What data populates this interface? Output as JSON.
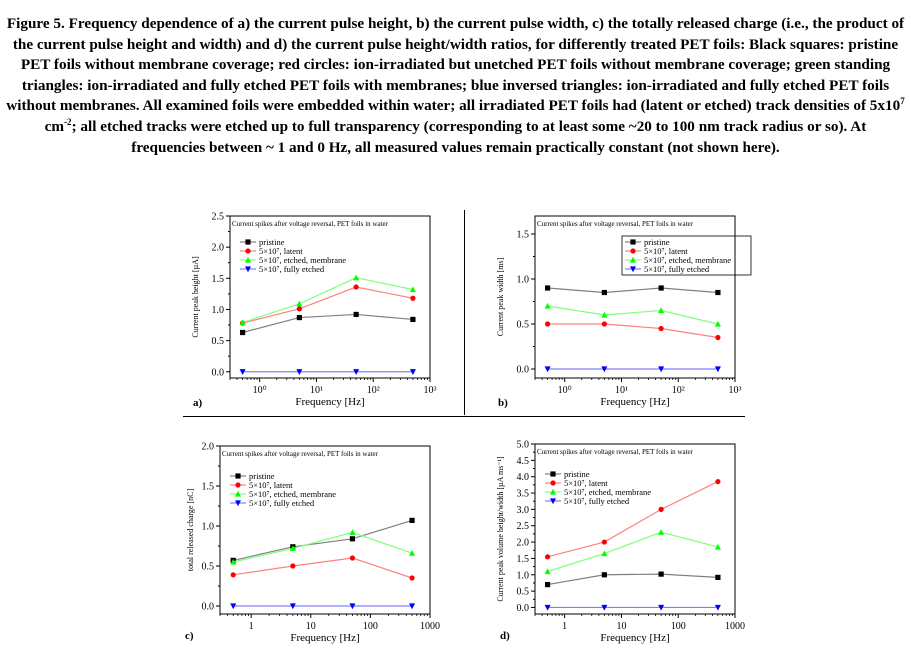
{
  "caption": {
    "text": "Figure 5. Frequency dependence of a) the current pulse height, b) the current pulse width, c) the totally released charge (i.e., the product of the current pulse height and width) and d) the current pulse height/width ratios, for differently treated PET foils: Black squares: pristine PET foils without membrane coverage; red circles: ion-irradiated but unetched PET foils without membrane coverage; green standing triangles: ion-irradiated and fully etched PET foils with membranes; blue inversed triangles: ion-irradiated and fully etched PET foils without membranes. All examined foils were embedded within water; all irradiated PET foils had (latent or etched) track densities of 5x10",
    "exp1": "7",
    "text2": " cm",
    "exp2": "-2",
    "text3": "; all etched tracks were etched up to full transparency (corresponding to at least some ~20 to 100 nm track radius or so). At frequencies between ~ 1 and 0 Hz, all measured values remain practically constant (not shown here)."
  },
  "chart_data": [
    {
      "id": "a",
      "type": "line",
      "panel_label": "a)",
      "title": "Current spikes after voltage reversal, PET foils in water",
      "xlabel": "Frequency [Hz]",
      "ylabel": "Current peak height [µA]",
      "x_scale": "log",
      "xlim": [
        0.3,
        1000
      ],
      "ylim": [
        -0.1,
        2.5
      ],
      "x_ticks": [
        {
          "v": 1,
          "label": "10⁰"
        },
        {
          "v": 10,
          "label": "10¹"
        },
        {
          "v": 100,
          "label": "10²"
        },
        {
          "v": 1000,
          "label": "10³"
        }
      ],
      "y_ticks": [
        {
          "v": 0,
          "label": "0.0"
        },
        {
          "v": 0.5,
          "label": "0.5"
        },
        {
          "v": 1,
          "label": "1.0"
        },
        {
          "v": 1.5,
          "label": "1.5"
        },
        {
          "v": 2,
          "label": "2.0"
        },
        {
          "v": 2.5,
          "label": "2.5"
        }
      ],
      "x": [
        0.5,
        5,
        50,
        500
      ],
      "legend": "upper-left",
      "series": [
        {
          "name": "pristine",
          "marker": "square",
          "color": "#000000",
          "line_color": "#808080",
          "values": [
            0.63,
            0.87,
            0.92,
            0.84
          ]
        },
        {
          "name": "5×10⁷, latent",
          "marker": "circle",
          "color": "#ff0000",
          "line_color": "#ff8080",
          "values": [
            0.78,
            1.01,
            1.36,
            1.18
          ]
        },
        {
          "name": "5×10⁷, etched, membrane",
          "marker": "triangle-up",
          "color": "#00ff00",
          "line_color": "#80ff80",
          "values": [
            0.79,
            1.09,
            1.51,
            1.32
          ]
        },
        {
          "name": "5×10⁷, fully etched",
          "marker": "triangle-down",
          "color": "#0000ff",
          "line_color": "#8080ff",
          "values": [
            0.0,
            0.0,
            0.0,
            0.0
          ]
        }
      ]
    },
    {
      "id": "b",
      "type": "line",
      "panel_label": "b)",
      "title": "Current spikes after voltage reversal, PET foils in water",
      "xlabel": "Frequency [Hz]",
      "ylabel": "Current peak width [ms]",
      "x_scale": "log",
      "xlim": [
        0.3,
        1000
      ],
      "ylim": [
        -0.1,
        1.7
      ],
      "x_ticks": [
        {
          "v": 1,
          "label": "10⁰"
        },
        {
          "v": 10,
          "label": "10¹"
        },
        {
          "v": 100,
          "label": "10²"
        },
        {
          "v": 1000,
          "label": "10³"
        }
      ],
      "y_ticks": [
        {
          "v": 0,
          "label": "0.0"
        },
        {
          "v": 0.5,
          "label": "0.5"
        },
        {
          "v": 1,
          "label": "1.0"
        },
        {
          "v": 1.5,
          "label": "1.5"
        }
      ],
      "x": [
        0.5,
        5,
        50,
        500
      ],
      "legend": "upper-right",
      "series": [
        {
          "name": "pristine",
          "marker": "square",
          "color": "#000000",
          "line_color": "#808080",
          "values": [
            0.9,
            0.85,
            0.9,
            0.85
          ]
        },
        {
          "name": "5×10⁷, latent",
          "marker": "circle",
          "color": "#ff0000",
          "line_color": "#ff8080",
          "values": [
            0.5,
            0.5,
            0.45,
            0.35
          ]
        },
        {
          "name": "5×10⁷, etched, membrane",
          "marker": "triangle-up",
          "color": "#00ff00",
          "line_color": "#80ff80",
          "values": [
            0.7,
            0.6,
            0.65,
            0.5
          ]
        },
        {
          "name": "5×10⁷, fully etched",
          "marker": "triangle-down",
          "color": "#0000ff",
          "line_color": "#8080ff",
          "values": [
            0.0,
            0.0,
            0.0,
            0.0
          ]
        }
      ]
    },
    {
      "id": "c",
      "type": "line",
      "panel_label": "c)",
      "title": "Current spikes after voltage reversal, PET foils in water",
      "xlabel": "Frequency [Hz]",
      "ylabel": "total released charge [nC]",
      "x_scale": "log",
      "xlim": [
        0.3,
        1000
      ],
      "ylim": [
        -0.1,
        2.0
      ],
      "x_ticks": [
        {
          "v": 1,
          "label": "1"
        },
        {
          "v": 10,
          "label": "10"
        },
        {
          "v": 100,
          "label": "100"
        },
        {
          "v": 1000,
          "label": "1000"
        }
      ],
      "y_ticks": [
        {
          "v": 0,
          "label": "0.0"
        },
        {
          "v": 0.5,
          "label": "0.5"
        },
        {
          "v": 1,
          "label": "1.0"
        },
        {
          "v": 1.5,
          "label": "1.5"
        },
        {
          "v": 2,
          "label": "2.0"
        }
      ],
      "x": [
        0.5,
        5,
        50,
        500
      ],
      "legend": "upper-left",
      "series": [
        {
          "name": "pristine",
          "marker": "square",
          "color": "#000000",
          "line_color": "#808080",
          "values": [
            0.57,
            0.74,
            0.84,
            1.07
          ]
        },
        {
          "name": "5×10⁷, latent",
          "marker": "circle",
          "color": "#ff0000",
          "line_color": "#ff8080",
          "values": [
            0.39,
            0.5,
            0.6,
            0.35
          ]
        },
        {
          "name": "5×10⁷, etched, membrane",
          "marker": "triangle-up",
          "color": "#00ff00",
          "line_color": "#80ff80",
          "values": [
            0.55,
            0.72,
            0.92,
            0.66
          ]
        },
        {
          "name": "5×10⁷, fully etched",
          "marker": "triangle-down",
          "color": "#0000ff",
          "line_color": "#8080ff",
          "values": [
            0.0,
            0.0,
            0.0,
            0.0
          ]
        }
      ]
    },
    {
      "id": "d",
      "type": "line",
      "panel_label": "d)",
      "title": "Current spikes after voltage reversal, PET foils in water",
      "xlabel": "Frequency [Hz]",
      "ylabel": "Current peak volume height/width [µA ms⁻¹]",
      "x_scale": "log",
      "xlim": [
        0.3,
        1000
      ],
      "ylim": [
        -0.2,
        5.0
      ],
      "x_ticks": [
        {
          "v": 1,
          "label": "1"
        },
        {
          "v": 10,
          "label": "10"
        },
        {
          "v": 100,
          "label": "100"
        },
        {
          "v": 1000,
          "label": "1000"
        }
      ],
      "y_ticks": [
        {
          "v": 0,
          "label": "0.0"
        },
        {
          "v": 0.5,
          "label": "0.5"
        },
        {
          "v": 1,
          "label": "1.0"
        },
        {
          "v": 1.5,
          "label": "1.5"
        },
        {
          "v": 2,
          "label": "2.0"
        },
        {
          "v": 2.5,
          "label": "2.5"
        },
        {
          "v": 3,
          "label": "3.0"
        },
        {
          "v": 3.5,
          "label": "3.5"
        },
        {
          "v": 4,
          "label": "4.0"
        },
        {
          "v": 4.5,
          "label": "4.5"
        },
        {
          "v": 5,
          "label": "5.0"
        }
      ],
      "x": [
        0.5,
        5,
        50,
        500
      ],
      "legend": "upper-left",
      "series": [
        {
          "name": "pristine",
          "marker": "square",
          "color": "#000000",
          "line_color": "#808080",
          "values": [
            0.7,
            1.0,
            1.02,
            0.92
          ]
        },
        {
          "name": "5×10⁷, latent",
          "marker": "circle",
          "color": "#ff0000",
          "line_color": "#ff8080",
          "values": [
            1.55,
            2.0,
            3.0,
            3.85
          ]
        },
        {
          "name": "5×10⁷, etched, membrane",
          "marker": "triangle-up",
          "color": "#00ff00",
          "line_color": "#80ff80",
          "values": [
            1.1,
            1.65,
            2.3,
            1.85
          ]
        },
        {
          "name": "5×10⁷, fully etched",
          "marker": "triangle-down",
          "color": "#0000ff",
          "line_color": "#8080ff",
          "values": [
            0.0,
            0.0,
            0.0,
            0.0
          ]
        }
      ]
    }
  ]
}
